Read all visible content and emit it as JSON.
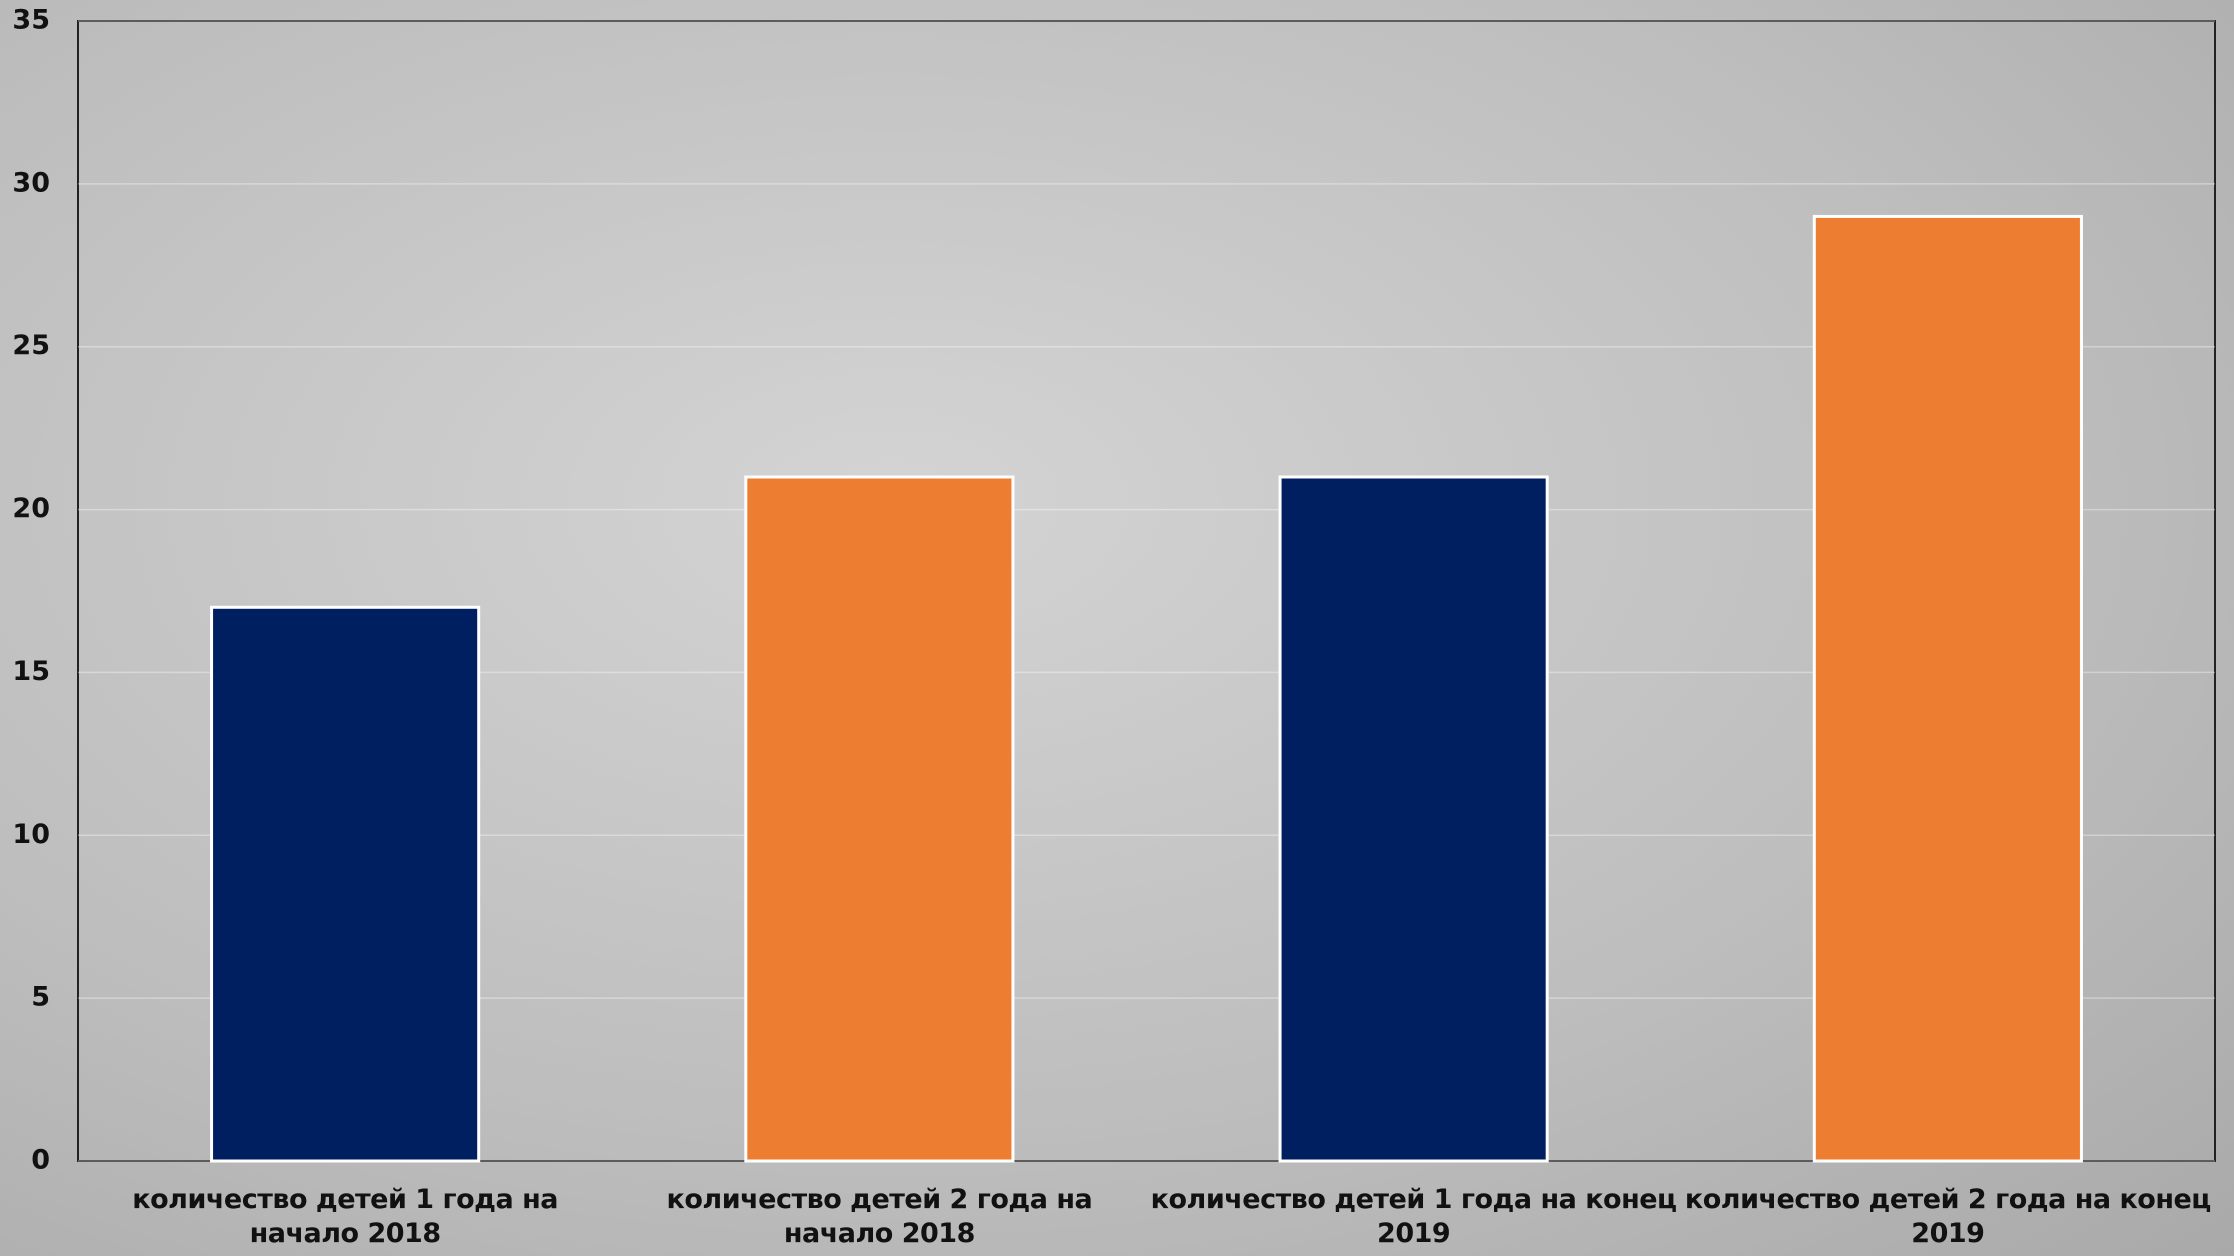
{
  "chart_data": {
    "type": "bar",
    "categories": [
      "количество детей 1 года на начало 2018",
      "количество детей 2 года на начало 2018",
      "количество детей 1 года на конец 2019",
      "количество детей 2 года на конец 2019"
    ],
    "values": [
      17,
      21,
      21,
      29
    ],
    "colors": [
      "#001f60",
      "#ed7d31",
      "#001f60",
      "#ed7d31"
    ],
    "ylim": [
      0,
      35
    ],
    "yticks": [
      0,
      5,
      10,
      15,
      20,
      25,
      30,
      35
    ],
    "grid": true
  }
}
